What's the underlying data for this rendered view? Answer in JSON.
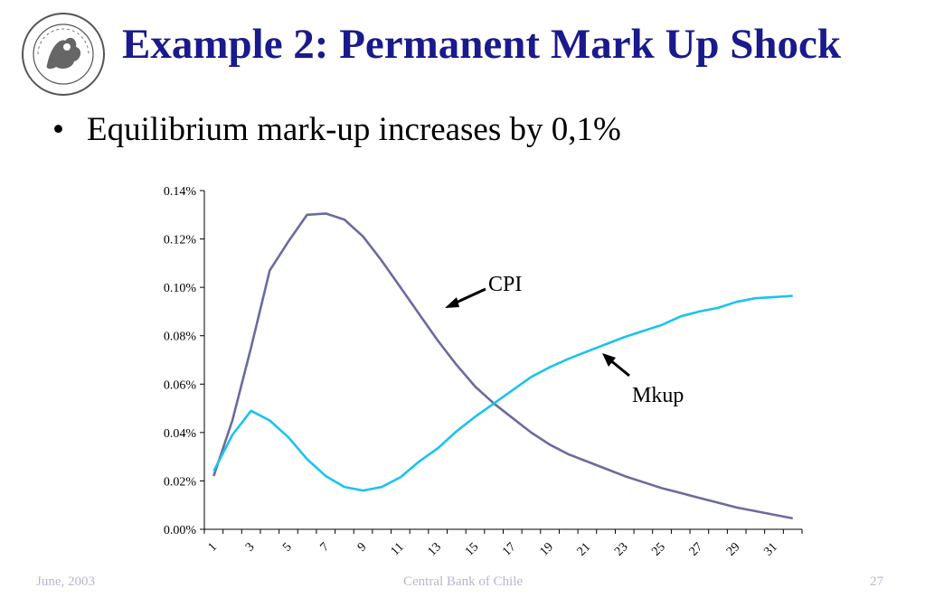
{
  "slide": {
    "title": "Example 2: Permanent Mark Up Shock",
    "bullet": "Equilibrium mark-up increases by 0,1%",
    "footer_left": "June, 2003",
    "footer_center": "Central Bank of Chile",
    "footer_right": "27",
    "logo_text": "BANCO CENTRAL"
  },
  "colors": {
    "title": "#1a1a8c",
    "cpi": "#6b6b9e",
    "mkup": "#19c3f0",
    "footer": "#b7b7cf"
  },
  "chart_data": {
    "type": "line",
    "title": "",
    "xlabel": "",
    "ylabel": "",
    "x": [
      1,
      2,
      3,
      4,
      5,
      6,
      7,
      8,
      9,
      10,
      11,
      12,
      13,
      14,
      15,
      16,
      17,
      18,
      19,
      20,
      21,
      22,
      23,
      24,
      25,
      26,
      27,
      28,
      29,
      30,
      31,
      32
    ],
    "x_tick_labels": [
      "1",
      "3",
      "5",
      "7",
      "9",
      "11",
      "13",
      "15",
      "17",
      "19",
      "21",
      "23",
      "25",
      "27",
      "29",
      "31"
    ],
    "y_tick_labels": [
      "0.00%",
      "0.02%",
      "0.04%",
      "0.06%",
      "0.08%",
      "0.10%",
      "0.12%",
      "0.14%"
    ],
    "ylim": [
      0,
      0.14
    ],
    "grid": false,
    "series": [
      {
        "name": "CPI",
        "values": [
          0.022,
          0.045,
          0.075,
          0.107,
          0.119,
          0.13,
          0.1305,
          0.128,
          0.121,
          0.111,
          0.1,
          0.089,
          0.078,
          0.068,
          0.059,
          0.052,
          0.046,
          0.04,
          0.035,
          0.031,
          0.028,
          0.025,
          0.022,
          0.0195,
          0.017,
          0.015,
          0.013,
          0.011,
          0.009,
          0.0075,
          0.006,
          0.0045
        ]
      },
      {
        "name": "Mkup",
        "values": [
          0.024,
          0.039,
          0.049,
          0.045,
          0.038,
          0.029,
          0.022,
          0.0175,
          0.016,
          0.0175,
          0.0215,
          0.028,
          0.0335,
          0.0405,
          0.0465,
          0.052,
          0.0575,
          0.063,
          0.067,
          0.0705,
          0.0735,
          0.0765,
          0.0795,
          0.082,
          0.0845,
          0.088,
          0.09,
          0.0915,
          0.094,
          0.0955,
          0.096,
          0.0965
        ]
      }
    ],
    "annotations": [
      {
        "text": "CPI",
        "series": "CPI"
      },
      {
        "text": "Mkup",
        "series": "Mkup"
      }
    ]
  }
}
